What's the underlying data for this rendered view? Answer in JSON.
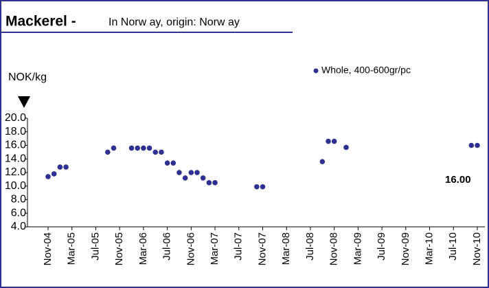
{
  "chart_data": {
    "type": "scatter",
    "title": "Mackerel -",
    "subtitle": "In Norw ay, origin: Norw ay",
    "y_label": "NOK/kg",
    "annotation": "16.00",
    "categories": [
      "Nov-04",
      null,
      null,
      null,
      "Mar-05",
      null,
      null,
      null,
      "Jul-05",
      null,
      null,
      null,
      "Nov-05",
      null,
      null,
      null,
      "Mar-06",
      null,
      null,
      null,
      "Jul-06",
      null,
      null,
      null,
      "Nov-06",
      null,
      null,
      null,
      "Mar-07",
      null,
      null,
      null,
      "Jul-07",
      null,
      null,
      null,
      "Nov-07",
      null,
      null,
      null,
      "Mar-08",
      null,
      null,
      null,
      "Jul-08",
      null,
      null,
      null,
      "Nov-08",
      null,
      null,
      null,
      "Mar-09",
      null,
      null,
      null,
      "Jul-09",
      null,
      null,
      null,
      "Nov-09",
      null,
      null,
      null,
      "Mar-10",
      null,
      null,
      null,
      "Jul-10",
      null,
      null,
      null,
      "Nov-10"
    ],
    "series": [
      {
        "name": "Whole, 400-600gr/pc",
        "color": "#2e3192",
        "values": [
          11.4,
          11.8,
          12.8,
          12.8,
          null,
          null,
          null,
          null,
          null,
          null,
          15.0,
          15.6,
          null,
          null,
          15.6,
          15.6,
          15.6,
          15.6,
          15.0,
          15.0,
          13.4,
          13.4,
          12.0,
          11.2,
          12.0,
          12.0,
          11.2,
          10.5,
          10.5,
          null,
          null,
          null,
          null,
          null,
          null,
          9.9,
          9.9,
          null,
          null,
          null,
          null,
          null,
          null,
          null,
          null,
          null,
          13.6,
          16.6,
          16.6,
          null,
          15.7,
          null,
          null,
          null,
          null,
          null,
          null,
          null,
          null,
          null,
          null,
          null,
          null,
          null,
          null,
          null,
          null,
          null,
          null,
          null,
          null,
          16.0,
          16.0
        ]
      }
    ],
    "ylim": [
      4,
      20
    ],
    "yticks": [
      {
        "value": 4,
        "label": "4.0"
      },
      {
        "value": 6,
        "label": "6.0"
      },
      {
        "value": 8,
        "label": "8.0"
      },
      {
        "value": 10,
        "label": "10.0"
      },
      {
        "value": 12,
        "label": "12.0"
      },
      {
        "value": 14,
        "label": "14.0"
      },
      {
        "value": 16,
        "label": "16.0"
      },
      {
        "value": 18,
        "label": "18.0"
      },
      {
        "value": 20,
        "label": "20.0"
      }
    ],
    "grid": false
  }
}
